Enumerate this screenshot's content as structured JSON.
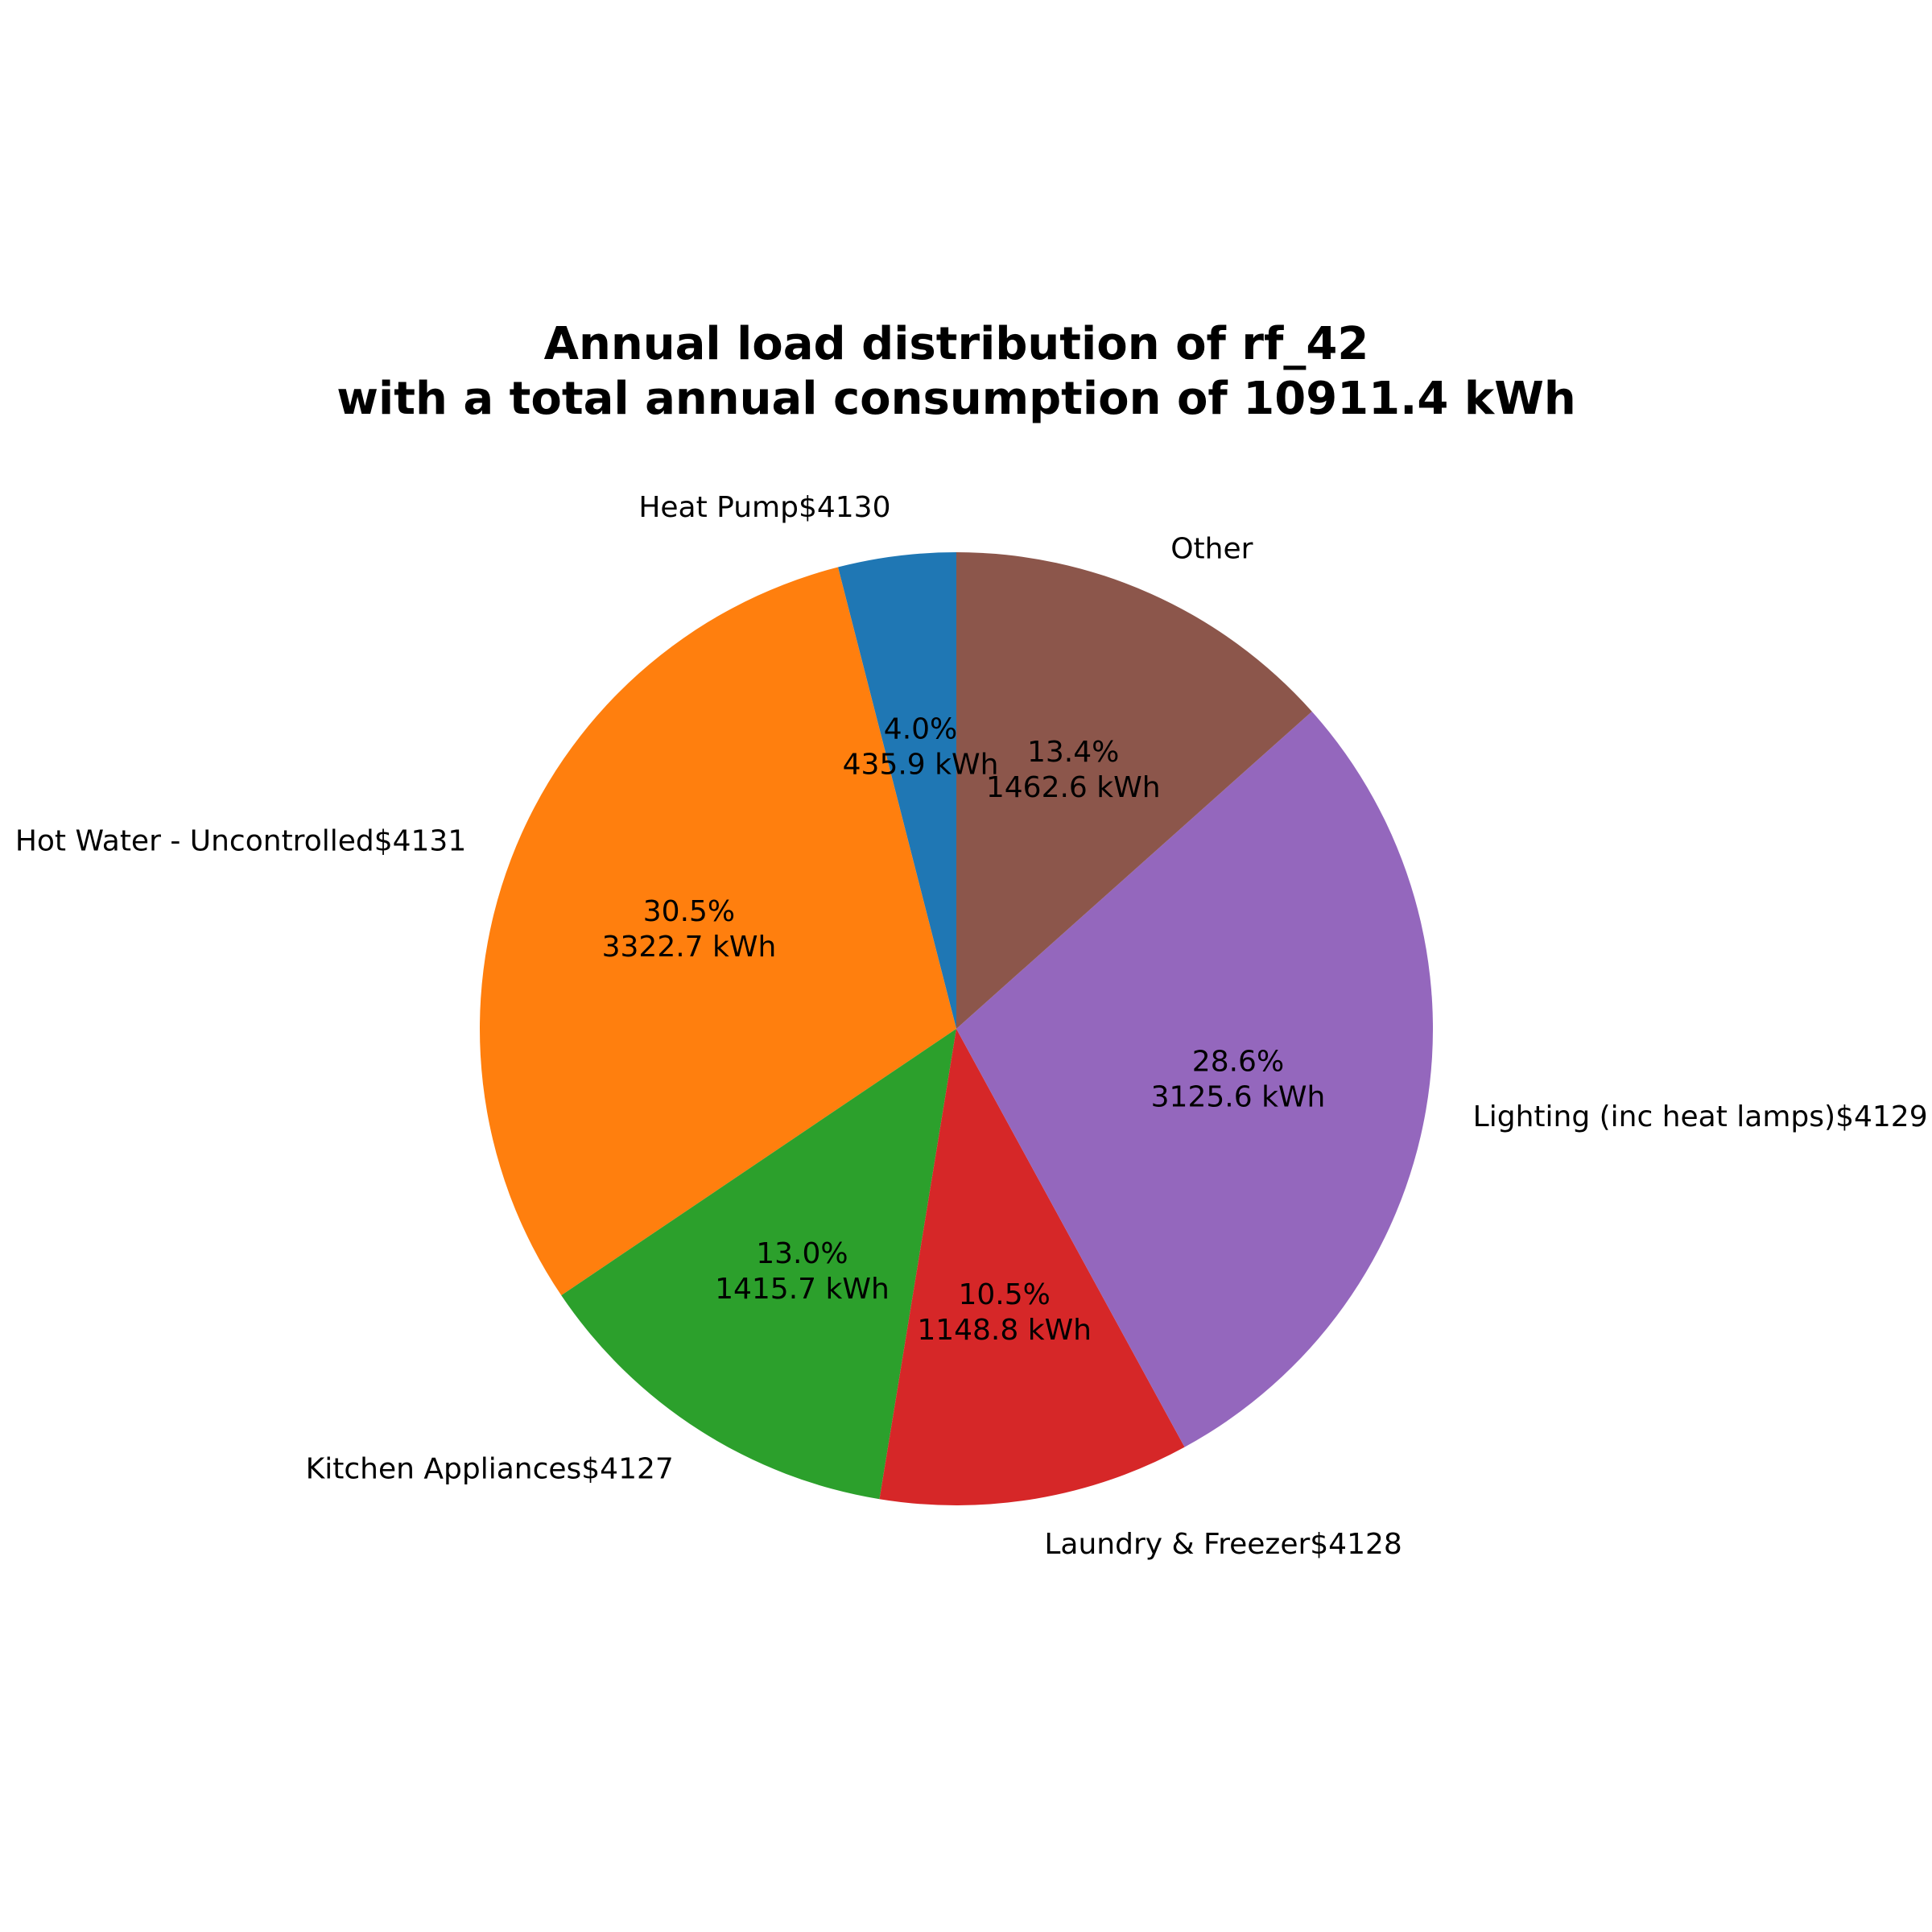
{
  "chart_data": {
    "type": "pie",
    "title_lines": [
      "Annual load distribution of rf_42",
      "with a total annual consumption of 10911.4 kWh"
    ],
    "start_angle": 90,
    "direction": "counterclockwise",
    "slices": [
      {
        "label": "Heat Pump$4130",
        "value": 435.9,
        "pct_text": "4.0%",
        "value_text": "435.9 kWh",
        "color": "#1f77b4"
      },
      {
        "label": "Hot Water - Uncontrolled$4131",
        "value": 3322.7,
        "pct_text": "30.5%",
        "value_text": "3322.7 kWh",
        "color": "#ff7f0e"
      },
      {
        "label": "Kitchen Appliances$4127",
        "value": 1415.7,
        "pct_text": "13.0%",
        "value_text": "1415.7 kWh",
        "color": "#2ca02c"
      },
      {
        "label": "Laundry & Freezer$4128",
        "value": 1148.8,
        "pct_text": "10.5%",
        "value_text": "1148.8 kWh",
        "color": "#d62728"
      },
      {
        "label": "Lighting (inc heat lamps)$4129",
        "value": 3125.6,
        "pct_text": "28.6%",
        "value_text": "3125.6 kWh",
        "color": "#9467bd"
      },
      {
        "label": "Other",
        "value": 1462.6,
        "pct_text": "13.4%",
        "value_text": "1462.6 kWh",
        "color": "#8c564b"
      }
    ]
  }
}
